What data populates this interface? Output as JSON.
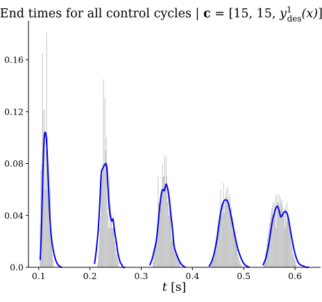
{
  "chart_data": {
    "type": "bar",
    "title": {
      "prefix": "End times for all control cycles | ",
      "vector": "c",
      "eq_open": " = [15, 15, ",
      "sym": "y",
      "sup": "1",
      "sub": "des",
      "arg": "(x)",
      "close": "]",
      "transpose": "⊤"
    },
    "xlabel": {
      "var": "t",
      "unit": " [s]"
    },
    "ylabel": "",
    "xlim": [
      0.08,
      0.65
    ],
    "ylim": [
      0,
      0.19
    ],
    "xticks": [
      0.1,
      0.2,
      0.3,
      0.4,
      0.5,
      0.6
    ],
    "xtick_labels": [
      "0.1",
      "0.2",
      "0.3",
      "0.4",
      "0.5",
      "0.6"
    ],
    "yticks": [
      0.0,
      0.04,
      0.08,
      0.12,
      0.16
    ],
    "ytick_labels": [
      "0.0",
      "0.04",
      "0.08",
      "0.12",
      "0.16"
    ],
    "grid": false,
    "colors": {
      "histogram": "#bdbdbd",
      "kde": "#0000ee"
    },
    "histogram": {
      "bin_width": 0.0014,
      "bins": [
        [
          0.1031,
          0.034
        ],
        [
          0.1045,
          0.075
        ],
        [
          0.1059,
          0.08
        ],
        [
          0.1073,
          0.165
        ],
        [
          0.1087,
          0.121
        ],
        [
          0.1101,
          0.096
        ],
        [
          0.1115,
          0.122
        ],
        [
          0.1129,
          0.06
        ],
        [
          0.1143,
          0.09
        ],
        [
          0.1157,
          0.181
        ],
        [
          0.1171,
          0.101
        ],
        [
          0.1185,
          0.079
        ],
        [
          0.1199,
          0.06
        ],
        [
          0.1213,
          0.03
        ],
        [
          0.1227,
          0.06
        ],
        [
          0.1241,
          0.03
        ],
        [
          0.1255,
          0.02
        ],
        [
          0.1269,
          0.01
        ],
        [
          0.1283,
          0.006
        ],
        [
          0.2153,
          0.004
        ],
        [
          0.2167,
          0.01
        ],
        [
          0.2181,
          0.02
        ],
        [
          0.2195,
          0.03
        ],
        [
          0.2209,
          0.04
        ],
        [
          0.2223,
          0.072
        ],
        [
          0.2237,
          0.071
        ],
        [
          0.2251,
          0.08
        ],
        [
          0.2265,
          0.145
        ],
        [
          0.2279,
          0.075
        ],
        [
          0.2293,
          0.131
        ],
        [
          0.2307,
          0.09
        ],
        [
          0.2321,
          0.1
        ],
        [
          0.2335,
          0.04
        ],
        [
          0.2349,
          0.08
        ],
        [
          0.2363,
          0.03
        ],
        [
          0.2377,
          0.07
        ],
        [
          0.2391,
          0.03
        ],
        [
          0.2405,
          0.05
        ],
        [
          0.2419,
          0.04
        ],
        [
          0.2433,
          0.03
        ],
        [
          0.2447,
          0.03
        ],
        [
          0.2461,
          0.04
        ],
        [
          0.2475,
          0.03
        ],
        [
          0.2489,
          0.02
        ],
        [
          0.2503,
          0.015
        ],
        [
          0.2517,
          0.01
        ],
        [
          0.2531,
          0.01
        ],
        [
          0.2545,
          0.006
        ],
        [
          0.2559,
          0.004
        ],
        [
          0.3233,
          0.004
        ],
        [
          0.3247,
          0.008
        ],
        [
          0.3261,
          0.012
        ],
        [
          0.3275,
          0.016
        ],
        [
          0.3289,
          0.02
        ],
        [
          0.3303,
          0.024
        ],
        [
          0.3317,
          0.026
        ],
        [
          0.3331,
          0.07
        ],
        [
          0.3345,
          0.05
        ],
        [
          0.3359,
          0.04
        ],
        [
          0.3373,
          0.047
        ],
        [
          0.3387,
          0.055
        ],
        [
          0.3401,
          0.058
        ],
        [
          0.3415,
          0.08
        ],
        [
          0.3429,
          0.07
        ],
        [
          0.3443,
          0.07
        ],
        [
          0.3457,
          0.085
        ],
        [
          0.3471,
          0.06
        ],
        [
          0.3485,
          0.086
        ],
        [
          0.3499,
          0.07
        ],
        [
          0.3513,
          0.05
        ],
        [
          0.3527,
          0.06
        ],
        [
          0.3541,
          0.04
        ],
        [
          0.3555,
          0.05
        ],
        [
          0.3569,
          0.04
        ],
        [
          0.3583,
          0.04
        ],
        [
          0.3597,
          0.02
        ],
        [
          0.3611,
          0.03
        ],
        [
          0.3625,
          0.02
        ],
        [
          0.3639,
          0.015
        ],
        [
          0.3653,
          0.012
        ],
        [
          0.3667,
          0.01
        ],
        [
          0.3681,
          0.01
        ],
        [
          0.3695,
          0.01
        ],
        [
          0.3709,
          0.01
        ],
        [
          0.3723,
          0.008
        ],
        [
          0.3737,
          0.006
        ],
        [
          0.3751,
          0.004
        ],
        [
          0.4367,
          0.004
        ],
        [
          0.4381,
          0.006
        ],
        [
          0.4395,
          0.008
        ],
        [
          0.4409,
          0.01
        ],
        [
          0.4423,
          0.012
        ],
        [
          0.4437,
          0.016
        ],
        [
          0.4451,
          0.02
        ],
        [
          0.4465,
          0.024
        ],
        [
          0.4479,
          0.028
        ],
        [
          0.4493,
          0.032
        ],
        [
          0.4507,
          0.036
        ],
        [
          0.4521,
          0.04
        ],
        [
          0.4535,
          0.045
        ],
        [
          0.4549,
          0.06
        ],
        [
          0.4563,
          0.05
        ],
        [
          0.4577,
          0.04
        ],
        [
          0.4591,
          0.05
        ],
        [
          0.4605,
          0.065
        ],
        [
          0.4619,
          0.042
        ],
        [
          0.4633,
          0.05
        ],
        [
          0.4647,
          0.055
        ],
        [
          0.4661,
          0.06
        ],
        [
          0.4675,
          0.048
        ],
        [
          0.4689,
          0.062
        ],
        [
          0.4703,
          0.054
        ],
        [
          0.4717,
          0.05
        ],
        [
          0.4731,
          0.056
        ],
        [
          0.4745,
          0.045
        ],
        [
          0.4759,
          0.046
        ],
        [
          0.4773,
          0.04
        ],
        [
          0.4787,
          0.038
        ],
        [
          0.4801,
          0.034
        ],
        [
          0.4815,
          0.03
        ],
        [
          0.4829,
          0.026
        ],
        [
          0.4843,
          0.022
        ],
        [
          0.4857,
          0.018
        ],
        [
          0.4871,
          0.014
        ],
        [
          0.4885,
          0.01
        ],
        [
          0.4899,
          0.008
        ],
        [
          0.4913,
          0.006
        ],
        [
          0.4927,
          0.004
        ],
        [
          0.4941,
          0.003
        ],
        [
          0.4955,
          0.002
        ],
        [
          0.5397,
          0.004
        ],
        [
          0.5411,
          0.006
        ],
        [
          0.5425,
          0.01
        ],
        [
          0.5439,
          0.014
        ],
        [
          0.5453,
          0.018
        ],
        [
          0.5467,
          0.022
        ],
        [
          0.5481,
          0.026
        ],
        [
          0.5495,
          0.03
        ],
        [
          0.5509,
          0.034
        ],
        [
          0.5523,
          0.038
        ],
        [
          0.5537,
          0.042
        ],
        [
          0.5551,
          0.046
        ],
        [
          0.5565,
          0.05
        ],
        [
          0.5579,
          0.04
        ],
        [
          0.5593,
          0.05
        ],
        [
          0.5607,
          0.045
        ],
        [
          0.5621,
          0.055
        ],
        [
          0.5635,
          0.03
        ],
        [
          0.5649,
          0.057
        ],
        [
          0.5663,
          0.05
        ],
        [
          0.5677,
          0.05
        ],
        [
          0.5691,
          0.056
        ],
        [
          0.5705,
          0.04
        ],
        [
          0.5719,
          0.054
        ],
        [
          0.5733,
          0.05
        ],
        [
          0.5747,
          0.052
        ],
        [
          0.5761,
          0.046
        ],
        [
          0.5775,
          0.04
        ],
        [
          0.5789,
          0.045
        ],
        [
          0.5803,
          0.03
        ],
        [
          0.5817,
          0.047
        ],
        [
          0.5831,
          0.035
        ],
        [
          0.5845,
          0.05
        ],
        [
          0.5859,
          0.04
        ],
        [
          0.5873,
          0.036
        ],
        [
          0.5887,
          0.032
        ],
        [
          0.5901,
          0.028
        ],
        [
          0.5915,
          0.024
        ],
        [
          0.5929,
          0.02
        ],
        [
          0.5943,
          0.016
        ],
        [
          0.5957,
          0.012
        ],
        [
          0.5971,
          0.01
        ],
        [
          0.5985,
          0.008
        ],
        [
          0.5999,
          0.006
        ],
        [
          0.6013,
          0.004
        ],
        [
          0.6027,
          0.002
        ]
      ]
    },
    "kde": [
      {
        "x": [
          0.103,
          0.105,
          0.107,
          0.109,
          0.111,
          0.113,
          0.115,
          0.117,
          0.119,
          0.121,
          0.124,
          0.128,
          0.132,
          0.136,
          0.14,
          0.145
        ],
        "y": [
          0.006,
          0.025,
          0.055,
          0.085,
          0.101,
          0.104,
          0.099,
          0.084,
          0.065,
          0.045,
          0.026,
          0.014,
          0.007,
          0.003,
          0.001,
          0.0
        ]
      },
      {
        "x": [
          0.209,
          0.212,
          0.216,
          0.219,
          0.222,
          0.225,
          0.227,
          0.229,
          0.231,
          0.233,
          0.235,
          0.238,
          0.242,
          0.245,
          0.248,
          0.252,
          0.255,
          0.259,
          0.262,
          0.265,
          0.268
        ],
        "y": [
          0.003,
          0.012,
          0.028,
          0.048,
          0.072,
          0.076,
          0.078,
          0.079,
          0.08,
          0.076,
          0.063,
          0.045,
          0.036,
          0.037,
          0.028,
          0.018,
          0.01,
          0.004,
          0.002,
          0.0,
          0.0
        ]
      },
      {
        "x": [
          0.317,
          0.321,
          0.326,
          0.33,
          0.334,
          0.337,
          0.34,
          0.342,
          0.345,
          0.347,
          0.349,
          0.352,
          0.355,
          0.358,
          0.361,
          0.364,
          0.368,
          0.372,
          0.377,
          0.382,
          0.386
        ],
        "y": [
          0.002,
          0.006,
          0.014,
          0.022,
          0.038,
          0.05,
          0.058,
          0.06,
          0.059,
          0.062,
          0.064,
          0.06,
          0.052,
          0.04,
          0.03,
          0.017,
          0.011,
          0.007,
          0.003,
          0.001,
          0.0
        ]
      },
      {
        "x": [
          0.433,
          0.438,
          0.443,
          0.448,
          0.452,
          0.456,
          0.46,
          0.464,
          0.468,
          0.472,
          0.476,
          0.48,
          0.484,
          0.488,
          0.492,
          0.496,
          0.5,
          0.505,
          0.511
        ],
        "y": [
          0.001,
          0.005,
          0.012,
          0.022,
          0.034,
          0.044,
          0.05,
          0.052,
          0.051,
          0.046,
          0.038,
          0.03,
          0.022,
          0.015,
          0.01,
          0.006,
          0.003,
          0.001,
          0.0
        ]
      },
      {
        "x": [
          0.538,
          0.543,
          0.548,
          0.552,
          0.556,
          0.56,
          0.563,
          0.566,
          0.569,
          0.572,
          0.575,
          0.578,
          0.581,
          0.584,
          0.587,
          0.59,
          0.594,
          0.598,
          0.602,
          0.606,
          0.61,
          0.616,
          0.622,
          0.627
        ],
        "y": [
          0.002,
          0.007,
          0.016,
          0.026,
          0.036,
          0.042,
          0.046,
          0.047,
          0.044,
          0.039,
          0.04,
          0.042,
          0.043,
          0.042,
          0.038,
          0.031,
          0.022,
          0.014,
          0.008,
          0.004,
          0.002,
          0.001,
          0.0,
          0.0
        ]
      }
    ]
  }
}
